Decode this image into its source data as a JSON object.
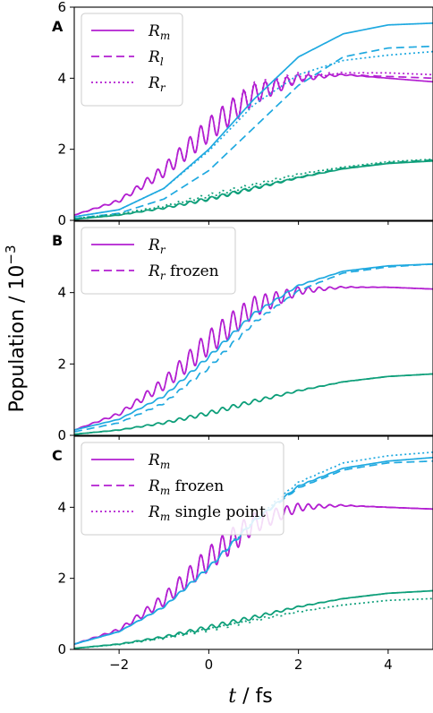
{
  "figure": {
    "ylabel": "Population / 10",
    "ylabel_exp": "−3",
    "xlabel_italic": "t",
    "xlabel_rest": " / fs"
  },
  "colors": {
    "magenta": "#b31fd1",
    "blue": "#1fa9e0",
    "green": "#0e9f7a"
  },
  "chart_data": [
    {
      "type": "line",
      "panel": "A",
      "xlim": [
        -3,
        5
      ],
      "ylim": [
        0,
        6
      ],
      "xticks": [
        -2,
        0,
        2,
        4
      ],
      "yticks": [
        0,
        2,
        4,
        6
      ],
      "ytick_labels": [
        "0",
        "2",
        "4",
        "6"
      ],
      "xtick_labels": [],
      "legend": {
        "position": "top-left",
        "entries": [
          {
            "label": "R",
            "sub": "m",
            "extra": "",
            "style": "solid"
          },
          {
            "label": "R",
            "sub": "l",
            "extra": "",
            "style": "dashed"
          },
          {
            "label": "R",
            "sub": "r",
            "extra": "",
            "style": "dotted"
          }
        ]
      },
      "series": [
        {
          "color": "magenta",
          "style": "solid",
          "x": [
            -3,
            -2,
            -1,
            0,
            1,
            2,
            3,
            4,
            5
          ],
          "y": [
            0.15,
            0.55,
            1.4,
            2.55,
            3.55,
            4.0,
            4.1,
            4.0,
            3.9
          ],
          "osc": 0.35
        },
        {
          "color": "magenta",
          "style": "dashed",
          "x": [
            -3,
            -2,
            -1,
            0,
            1,
            2,
            3,
            4,
            5
          ],
          "y": [
            0.15,
            0.55,
            1.4,
            2.55,
            3.55,
            4.0,
            4.1,
            4.05,
            4.0
          ],
          "osc": 0.35
        },
        {
          "color": "magenta",
          "style": "dotted",
          "x": [
            -3,
            -2,
            -1,
            0,
            1,
            2,
            3,
            4,
            5
          ],
          "y": [
            0.15,
            0.55,
            1.4,
            2.55,
            3.6,
            4.05,
            4.15,
            4.15,
            4.1
          ],
          "osc": 0.35
        },
        {
          "color": "blue",
          "style": "solid",
          "x": [
            -3,
            -2,
            -1,
            0,
            1,
            2,
            3,
            4,
            5
          ],
          "y": [
            0.1,
            0.3,
            0.9,
            2.0,
            3.4,
            4.6,
            5.25,
            5.5,
            5.55
          ],
          "osc": 0
        },
        {
          "color": "blue",
          "style": "dashed",
          "x": [
            -3,
            -2,
            -1,
            0,
            1,
            2,
            3,
            4,
            5
          ],
          "y": [
            0.05,
            0.2,
            0.6,
            1.4,
            2.6,
            3.8,
            4.6,
            4.85,
            4.9
          ],
          "osc": 0
        },
        {
          "color": "blue",
          "style": "dotted",
          "x": [
            -3,
            -2,
            -1,
            0,
            1,
            2,
            3,
            4,
            5
          ],
          "y": [
            0.1,
            0.3,
            0.9,
            1.95,
            3.25,
            4.1,
            4.5,
            4.65,
            4.75
          ],
          "osc": 0
        },
        {
          "color": "green",
          "style": "solid",
          "x": [
            -3,
            -2,
            -1,
            0,
            1,
            2,
            3,
            4,
            5
          ],
          "y": [
            0.03,
            0.15,
            0.35,
            0.6,
            0.9,
            1.2,
            1.45,
            1.6,
            1.67
          ],
          "osc": 0.05
        },
        {
          "color": "green",
          "style": "dashed",
          "x": [
            -3,
            -2,
            -1,
            0,
            1,
            2,
            3,
            4,
            5
          ],
          "y": [
            0.03,
            0.15,
            0.35,
            0.62,
            0.92,
            1.22,
            1.47,
            1.62,
            1.7
          ],
          "osc": 0.05
        },
        {
          "color": "green",
          "style": "dotted",
          "x": [
            -3,
            -2,
            -1,
            0,
            1,
            2,
            3,
            4,
            5
          ],
          "y": [
            0.05,
            0.18,
            0.4,
            0.7,
            1.0,
            1.3,
            1.5,
            1.65,
            1.72
          ],
          "osc": 0.05
        }
      ]
    },
    {
      "type": "line",
      "panel": "B",
      "xlim": [
        -3,
        5
      ],
      "ylim": [
        0,
        6
      ],
      "xticks": [
        -2,
        0,
        2,
        4
      ],
      "yticks": [
        0,
        2,
        4
      ],
      "ytick_labels": [
        "0",
        "2",
        "4"
      ],
      "xtick_labels": [],
      "legend": {
        "position": "top-left",
        "entries": [
          {
            "label": "R",
            "sub": "r",
            "extra": "",
            "style": "solid"
          },
          {
            "label": "R",
            "sub": "r",
            "extra": " frozen",
            "style": "dashed"
          }
        ]
      },
      "series": [
        {
          "color": "magenta",
          "style": "solid",
          "x": [
            -3,
            -2,
            -1,
            0,
            1,
            2,
            3,
            4,
            5
          ],
          "y": [
            0.15,
            0.6,
            1.45,
            2.6,
            3.6,
            4.05,
            4.15,
            4.15,
            4.1
          ],
          "osc": 0.35
        },
        {
          "color": "magenta",
          "style": "dashed",
          "x": [
            -3,
            -2,
            -1,
            0,
            1,
            2,
            3,
            4,
            5
          ],
          "y": [
            0.15,
            0.6,
            1.45,
            2.6,
            3.6,
            4.05,
            4.15,
            4.15,
            4.1
          ],
          "osc": 0.35
        },
        {
          "color": "blue",
          "style": "solid",
          "x": [
            -3,
            -2,
            -1,
            0,
            1,
            2,
            3,
            4,
            5
          ],
          "y": [
            0.15,
            0.45,
            1.1,
            2.2,
            3.4,
            4.2,
            4.6,
            4.75,
            4.8
          ],
          "osc": 0.05
        },
        {
          "color": "blue",
          "style": "dashed",
          "x": [
            -3,
            -2,
            -1,
            0,
            1,
            2,
            3,
            4,
            5
          ],
          "y": [
            0.1,
            0.35,
            0.9,
            1.9,
            3.15,
            4.05,
            4.55,
            4.72,
            4.8
          ],
          "osc": 0.05
        },
        {
          "color": "green",
          "style": "solid",
          "x": [
            -3,
            -2,
            -1,
            0,
            1,
            2,
            3,
            4,
            5
          ],
          "y": [
            0.03,
            0.15,
            0.35,
            0.62,
            0.95,
            1.25,
            1.5,
            1.65,
            1.72
          ],
          "osc": 0.06
        },
        {
          "color": "green",
          "style": "dashed",
          "x": [
            -3,
            -2,
            -1,
            0,
            1,
            2,
            3,
            4,
            5
          ],
          "y": [
            0.03,
            0.15,
            0.35,
            0.62,
            0.95,
            1.25,
            1.5,
            1.65,
            1.72
          ],
          "osc": 0.06
        }
      ]
    },
    {
      "type": "line",
      "panel": "C",
      "xlim": [
        -3,
        5
      ],
      "ylim": [
        0,
        6
      ],
      "xticks": [
        -2,
        0,
        2,
        4
      ],
      "yticks": [
        0,
        2,
        4
      ],
      "ytick_labels": [
        "0",
        "2",
        "4"
      ],
      "xtick_labels": [
        "−2",
        "0",
        "2",
        "4"
      ],
      "legend": {
        "position": "top-left",
        "entries": [
          {
            "label": "R",
            "sub": "m",
            "extra": "",
            "style": "solid"
          },
          {
            "label": "R",
            "sub": "m",
            "extra": " frozen",
            "style": "dashed"
          },
          {
            "label": "R",
            "sub": "m",
            "extra": " single point",
            "style": "dotted"
          }
        ]
      },
      "series": [
        {
          "color": "magenta",
          "style": "solid",
          "x": [
            -3,
            -2,
            -1,
            0,
            1,
            2,
            3,
            4,
            5
          ],
          "y": [
            0.15,
            0.55,
            1.4,
            2.55,
            3.55,
            4.0,
            4.05,
            4.0,
            3.95
          ],
          "osc": 0.35
        },
        {
          "color": "magenta",
          "style": "dashed",
          "x": [
            -3,
            -2,
            -1,
            0,
            1,
            2,
            3,
            4,
            5
          ],
          "y": [
            0.15,
            0.55,
            1.4,
            2.55,
            3.55,
            4.0,
            4.05,
            4.0,
            3.95
          ],
          "osc": 0.35
        },
        {
          "color": "magenta",
          "style": "dotted",
          "x": [
            -3,
            -2,
            -1,
            0,
            1,
            2,
            3,
            4,
            5
          ],
          "y": [
            0.15,
            0.55,
            1.4,
            2.55,
            3.55,
            4.0,
            4.05,
            4.0,
            3.95
          ],
          "osc": 0.35
        },
        {
          "color": "blue",
          "style": "solid",
          "x": [
            -3,
            -2,
            -1,
            0,
            1,
            2,
            3,
            4,
            5
          ],
          "y": [
            0.15,
            0.5,
            1.2,
            2.3,
            3.6,
            4.6,
            5.1,
            5.3,
            5.4
          ],
          "osc": 0.05
        },
        {
          "color": "blue",
          "style": "dashed",
          "x": [
            -3,
            -2,
            -1,
            0,
            1,
            2,
            3,
            4,
            5
          ],
          "y": [
            0.15,
            0.5,
            1.2,
            2.3,
            3.6,
            4.55,
            5.05,
            5.25,
            5.3
          ],
          "osc": 0.05
        },
        {
          "color": "blue",
          "style": "dotted",
          "x": [
            -3,
            -2,
            -1,
            0,
            1,
            2,
            3,
            4,
            5
          ],
          "y": [
            0.15,
            0.5,
            1.2,
            2.3,
            3.65,
            4.7,
            5.25,
            5.45,
            5.55
          ],
          "osc": 0.05
        },
        {
          "color": "green",
          "style": "solid",
          "x": [
            -3,
            -2,
            -1,
            0,
            1,
            2,
            3,
            4,
            5
          ],
          "y": [
            0.03,
            0.15,
            0.35,
            0.62,
            0.9,
            1.2,
            1.43,
            1.58,
            1.65
          ],
          "osc": 0.06
        },
        {
          "color": "green",
          "style": "dashed",
          "x": [
            -3,
            -2,
            -1,
            0,
            1,
            2,
            3,
            4,
            5
          ],
          "y": [
            0.03,
            0.15,
            0.35,
            0.62,
            0.9,
            1.2,
            1.43,
            1.58,
            1.65
          ],
          "osc": 0.06
        },
        {
          "color": "green",
          "style": "dotted",
          "x": [
            -3,
            -2,
            -1,
            0,
            1,
            2,
            3,
            4,
            5
          ],
          "y": [
            0.03,
            0.14,
            0.32,
            0.56,
            0.82,
            1.06,
            1.25,
            1.38,
            1.43
          ],
          "osc": 0.05
        }
      ]
    }
  ]
}
